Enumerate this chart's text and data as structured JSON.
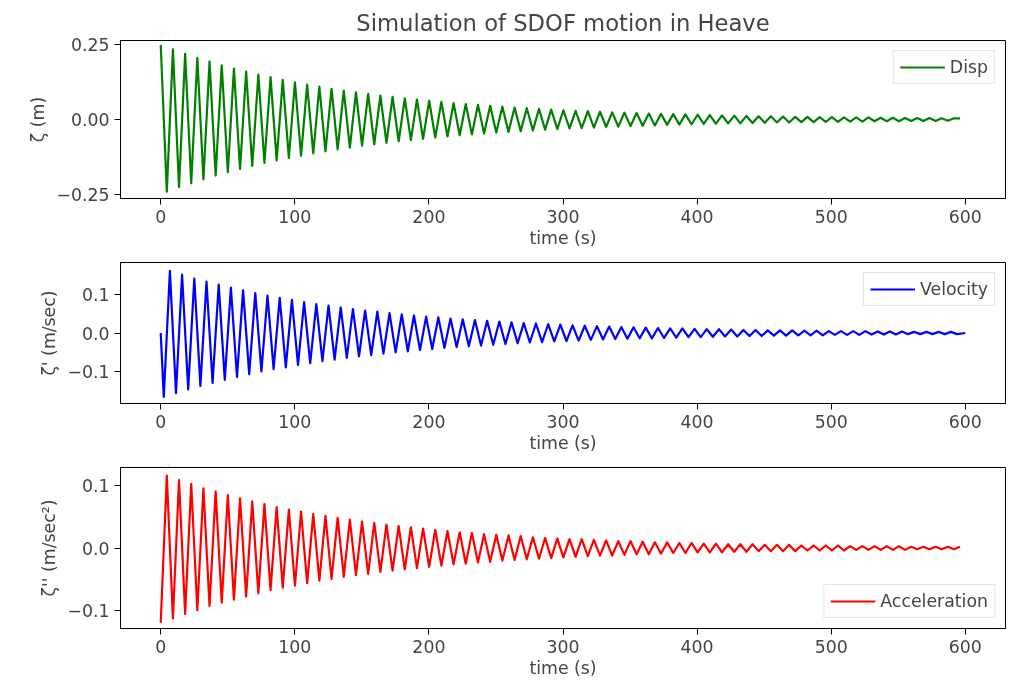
{
  "chart_data": [
    {
      "type": "line",
      "title": "Simulation of SDOF motion in Heave",
      "xlabel": "time (s)",
      "ylabel": "ζ (m)",
      "xlim": [
        -30,
        630
      ],
      "xticks": [
        0,
        100,
        200,
        300,
        400,
        500,
        600
      ],
      "ylim": [
        -0.265,
        0.265
      ],
      "yticks": [
        {
          "value": -0.25,
          "label": "−0.25"
        },
        {
          "value": 0,
          "label": "0.00"
        },
        {
          "value": 0.25,
          "label": "0.25"
        }
      ],
      "legend": "top right",
      "x": [
        0,
        4.55,
        9.1,
        13.65,
        18.2,
        22.75,
        27.3,
        31.85,
        36.4,
        40.95,
        45.5,
        50.05,
        54.6,
        59.15,
        63.7,
        68.25,
        72.8,
        77.35,
        81.9,
        86.45,
        91,
        95.55,
        100.1,
        104.65,
        109.2,
        113.75,
        118.3,
        122.85,
        127.4,
        131.95,
        136.5,
        141.05,
        145.6,
        150.15,
        154.7,
        159.25,
        163.8,
        168.35,
        172.9,
        177.45,
        182,
        186.55,
        191.1,
        195.65,
        200.2,
        204.75,
        209.3,
        213.85,
        218.4,
        222.95,
        227.5,
        232.05,
        236.6,
        241.15,
        245.7,
        250.25,
        254.8,
        259.35,
        263.9,
        268.45,
        273,
        277.55,
        282.1,
        286.65,
        291.2,
        295.75,
        300.3,
        304.85,
        309.4,
        313.95,
        318.5,
        323.05,
        327.6,
        332.15,
        336.7,
        341.25,
        345.8,
        350.35,
        354.9,
        359.45,
        364,
        368.55,
        373.1,
        377.65,
        382.2,
        386.75,
        391.3,
        395.85,
        400.4,
        404.95,
        409.5,
        414.05,
        418.6,
        423.15,
        427.7,
        432.25,
        436.8,
        441.35,
        445.9,
        450.45,
        455,
        459.55,
        464.1,
        468.65,
        473.2,
        477.75,
        482.3,
        486.85,
        491.4,
        495.95,
        500.5,
        505.05,
        509.6,
        514.15,
        518.7,
        523.25,
        527.8,
        532.35,
        536.9,
        541.45,
        546,
        550.55,
        555.1,
        559.65,
        564.2,
        568.75,
        573.3,
        577.85,
        582.4,
        586.95,
        591.5,
        596.05
      ],
      "series": [
        {
          "name": "Disp",
          "color": "#008000",
          "values": [
            0.25,
            -0.242,
            0.235,
            -0.227,
            0.22,
            -0.214,
            0.207,
            -0.201,
            0.194,
            -0.188,
            0.182,
            -0.177,
            0.171,
            -0.166,
            0.161,
            -0.156,
            0.151,
            -0.146,
            0.142,
            -0.137,
            0.133,
            -0.129,
            0.125,
            -0.121,
            0.117,
            -0.114,
            0.11,
            -0.107,
            0.103,
            -0.1,
            0.097,
            -0.094,
            0.091,
            -0.088,
            0.086,
            -0.083,
            0.08,
            -0.078,
            0.076,
            -0.073,
            0.071,
            -0.069,
            0.067,
            -0.065,
            0.063,
            -0.061,
            0.059,
            -0.057,
            0.055,
            -0.053,
            0.052,
            -0.05,
            0.049,
            -0.047,
            0.046,
            -0.044,
            0.043,
            -0.042,
            0.04,
            -0.039,
            0.038,
            -0.037,
            0.036,
            -0.034,
            0.033,
            -0.032,
            0.031,
            -0.03,
            0.029,
            -0.029,
            0.028,
            -0.027,
            0.026,
            -0.025,
            0.024,
            -0.024,
            0.023,
            -0.022,
            0.022,
            -0.021,
            0.02,
            -0.02,
            0.019,
            -0.018,
            0.018,
            -0.017,
            0.017,
            -0.016,
            0.016,
            -0.015,
            0.015,
            -0.014,
            0.014,
            -0.013,
            0.013,
            -0.013,
            0.012,
            -0.012,
            0.011,
            -0.011,
            0.011,
            -0.01,
            0.01,
            -0.01,
            0.009,
            -0.009,
            0.009,
            -0.009,
            0.008,
            -0.008,
            0.008,
            -0.008,
            0.007,
            -0.007,
            0.007,
            -0.007,
            0.007,
            -0.006,
            0.006,
            -0.006,
            0.006,
            -0.006,
            0.005,
            -0.005,
            0.005,
            -0.005,
            0.005,
            -0.005,
            0.004,
            -0.004,
            0.004,
            0.004
          ]
        }
      ]
    },
    {
      "type": "line",
      "xlabel": "time (s)",
      "ylabel": "ζ' (m/sec)",
      "xlim": [
        -30,
        630
      ],
      "xticks": [
        0,
        100,
        200,
        300,
        400,
        500,
        600
      ],
      "ylim": [
        -0.185,
        0.185
      ],
      "yticks": [
        {
          "value": -0.1,
          "label": "−0.1"
        },
        {
          "value": 0,
          "label": "0.0"
        },
        {
          "value": 0.1,
          "label": "0.1"
        }
      ],
      "legend": "top right",
      "x": [
        0,
        2.28,
        6.83,
        11.38,
        15.93,
        20.48,
        25.03,
        29.58,
        34.13,
        38.68,
        43.23,
        47.78,
        52.33,
        56.88,
        61.43,
        65.98,
        70.53,
        75.08,
        79.63,
        84.18,
        88.73,
        93.28,
        97.83,
        102.38,
        106.93,
        111.48,
        116.03,
        120.58,
        125.13,
        129.68,
        134.23,
        138.78,
        143.33,
        147.88,
        152.43,
        156.98,
        161.53,
        166.08,
        170.63,
        175.18,
        179.73,
        184.28,
        188.83,
        193.38,
        197.93,
        202.48,
        207.03,
        211.58,
        216.13,
        220.68,
        225.23,
        229.78,
        234.33,
        238.88,
        243.43,
        247.98,
        252.53,
        257.08,
        261.63,
        266.18,
        270.73,
        275.28,
        279.83,
        284.38,
        288.93,
        293.48,
        298.03,
        302.58,
        307.13,
        311.68,
        316.23,
        320.78,
        325.33,
        329.88,
        334.43,
        338.98,
        343.53,
        348.08,
        352.63,
        357.18,
        361.73,
        366.28,
        370.83,
        375.38,
        379.93,
        384.48,
        389.03,
        393.58,
        398.13,
        402.68,
        407.23,
        411.78,
        416.33,
        420.88,
        425.43,
        429.98,
        434.53,
        439.08,
        443.63,
        448.18,
        452.73,
        457.28,
        461.83,
        466.38,
        470.93,
        475.48,
        480.03,
        484.58,
        489.13,
        493.68,
        498.23,
        502.78,
        507.33,
        511.88,
        516.43,
        520.98,
        525.53,
        530.08,
        534.63,
        539.18,
        543.73,
        548.28,
        552.83,
        557.38,
        561.93,
        566.48,
        571.03,
        575.58,
        580.13,
        584.68,
        589.23,
        593.78,
        600
      ],
      "series": [
        {
          "name": "Velocity",
          "color": "#0000ff",
          "values": [
            0,
            -0.168,
            0.163,
            -0.158,
            0.153,
            -0.148,
            0.143,
            -0.139,
            0.135,
            -0.131,
            0.127,
            -0.123,
            0.119,
            -0.115,
            0.112,
            -0.108,
            0.105,
            -0.101,
            0.098,
            -0.095,
            0.092,
            -0.09,
            0.087,
            -0.084,
            0.081,
            -0.079,
            0.076,
            -0.074,
            0.072,
            -0.07,
            0.067,
            -0.065,
            0.063,
            -0.061,
            0.059,
            -0.058,
            0.056,
            -0.054,
            0.052,
            -0.051,
            0.049,
            -0.048,
            0.046,
            -0.045,
            0.043,
            -0.042,
            0.041,
            -0.039,
            0.038,
            -0.037,
            0.036,
            -0.035,
            0.034,
            -0.033,
            0.032,
            -0.031,
            0.03,
            -0.029,
            0.028,
            -0.027,
            0.026,
            -0.025,
            0.025,
            -0.024,
            0.023,
            -0.022,
            0.022,
            -0.021,
            0.02,
            -0.02,
            0.019,
            -0.018,
            0.018,
            -0.017,
            0.017,
            -0.016,
            0.016,
            -0.015,
            0.015,
            -0.014,
            0.014,
            -0.014,
            0.013,
            -0.013,
            0.012,
            -0.012,
            0.012,
            -0.011,
            0.011,
            -0.011,
            0.01,
            -0.01,
            0.01,
            -0.009,
            0.009,
            -0.009,
            0.008,
            -0.008,
            0.008,
            -0.008,
            0.007,
            -0.007,
            0.007,
            -0.007,
            0.007,
            -0.006,
            0.006,
            -0.006,
            0.006,
            -0.006,
            0.005,
            -0.005,
            0.005,
            -0.005,
            0.005,
            -0.005,
            0.005,
            -0.004,
            0.004,
            -0.004,
            0.004,
            -0.004,
            0.004,
            -0.003,
            0.003,
            -0.003,
            0.003,
            -0.003,
            0.003,
            -0.003,
            0.003,
            -0.003,
            0
          ]
        }
      ]
    },
    {
      "type": "line",
      "xlabel": "time (s)",
      "ylabel": "ζ'' (m/sec²)",
      "xlim": [
        -30,
        630
      ],
      "xticks": [
        0,
        100,
        200,
        300,
        400,
        500,
        600
      ],
      "ylim": [
        -0.128,
        0.128
      ],
      "yticks": [
        {
          "value": -0.1,
          "label": "−0.1"
        },
        {
          "value": 0,
          "label": "0.0"
        },
        {
          "value": 0.1,
          "label": "0.1"
        }
      ],
      "legend": "bottom right",
      "x": [
        0,
        4.55,
        9.1,
        13.65,
        18.2,
        22.75,
        27.3,
        31.85,
        36.4,
        40.95,
        45.5,
        50.05,
        54.6,
        59.15,
        63.7,
        68.25,
        72.8,
        77.35,
        81.9,
        86.45,
        91,
        95.55,
        100.1,
        104.65,
        109.2,
        113.75,
        118.3,
        122.85,
        127.4,
        131.95,
        136.5,
        141.05,
        145.6,
        150.15,
        154.7,
        159.25,
        163.8,
        168.35,
        172.9,
        177.45,
        182,
        186.55,
        191.1,
        195.65,
        200.2,
        204.75,
        209.3,
        213.85,
        218.4,
        222.95,
        227.5,
        232.05,
        236.6,
        241.15,
        245.7,
        250.25,
        254.8,
        259.35,
        263.9,
        268.45,
        273,
        277.55,
        282.1,
        286.65,
        291.2,
        295.75,
        300.3,
        304.85,
        309.4,
        313.95,
        318.5,
        323.05,
        327.6,
        332.15,
        336.7,
        341.25,
        345.8,
        350.35,
        354.9,
        359.45,
        364,
        368.55,
        373.1,
        377.65,
        382.2,
        386.75,
        391.3,
        395.85,
        400.4,
        404.95,
        409.5,
        414.05,
        418.6,
        423.15,
        427.7,
        432.25,
        436.8,
        441.35,
        445.9,
        450.45,
        455,
        459.55,
        464.1,
        468.65,
        473.2,
        477.75,
        482.3,
        486.85,
        491.4,
        495.95,
        500.5,
        505.05,
        509.6,
        514.15,
        518.7,
        523.25,
        527.8,
        532.35,
        536.9,
        541.45,
        546,
        550.55,
        555.1,
        559.65,
        564.2,
        568.75,
        573.3,
        577.85,
        582.4,
        586.95,
        591.5,
        596.05
      ],
      "series": [
        {
          "name": "Acceleration",
          "color": "#ff0000",
          "values": [
            -0.119,
            0.115,
            -0.112,
            0.108,
            -0.105,
            0.102,
            -0.099,
            0.095,
            -0.092,
            0.09,
            -0.087,
            0.084,
            -0.082,
            0.079,
            -0.077,
            0.074,
            -0.072,
            0.07,
            -0.067,
            0.065,
            -0.063,
            0.061,
            -0.06,
            0.058,
            -0.056,
            0.054,
            -0.052,
            0.051,
            -0.049,
            0.048,
            -0.046,
            0.045,
            -0.043,
            0.042,
            -0.041,
            0.04,
            -0.038,
            0.037,
            -0.036,
            0.035,
            -0.034,
            0.033,
            -0.032,
            0.031,
            -0.03,
            0.029,
            -0.028,
            0.027,
            -0.026,
            0.025,
            -0.025,
            0.024,
            -0.023,
            0.022,
            -0.022,
            0.021,
            -0.02,
            0.02,
            -0.019,
            0.019,
            -0.018,
            0.017,
            -0.017,
            0.016,
            -0.016,
            0.015,
            -0.015,
            0.014,
            -0.014,
            0.014,
            -0.013,
            0.013,
            -0.012,
            0.012,
            -0.012,
            0.011,
            -0.011,
            0.011,
            -0.01,
            0.01,
            -0.01,
            0.009,
            -0.009,
            0.009,
            -0.008,
            0.008,
            -0.008,
            0.008,
            -0.007,
            0.007,
            -0.007,
            0.007,
            -0.007,
            0.006,
            -0.006,
            0.006,
            -0.006,
            0.006,
            -0.005,
            0.005,
            -0.005,
            0.005,
            -0.005,
            0.005,
            -0.005,
            0.004,
            -0.004,
            0.004,
            -0.004,
            0.004,
            -0.004,
            0.004,
            -0.004,
            0.003,
            -0.003,
            0.003,
            -0.003,
            0.003,
            -0.003,
            0.003,
            -0.003,
            0.003,
            -0.003,
            0.002,
            -0.002,
            0.002,
            -0.002,
            0.002,
            -0.002,
            0.002,
            -0.002,
            0.002
          ]
        }
      ]
    }
  ]
}
